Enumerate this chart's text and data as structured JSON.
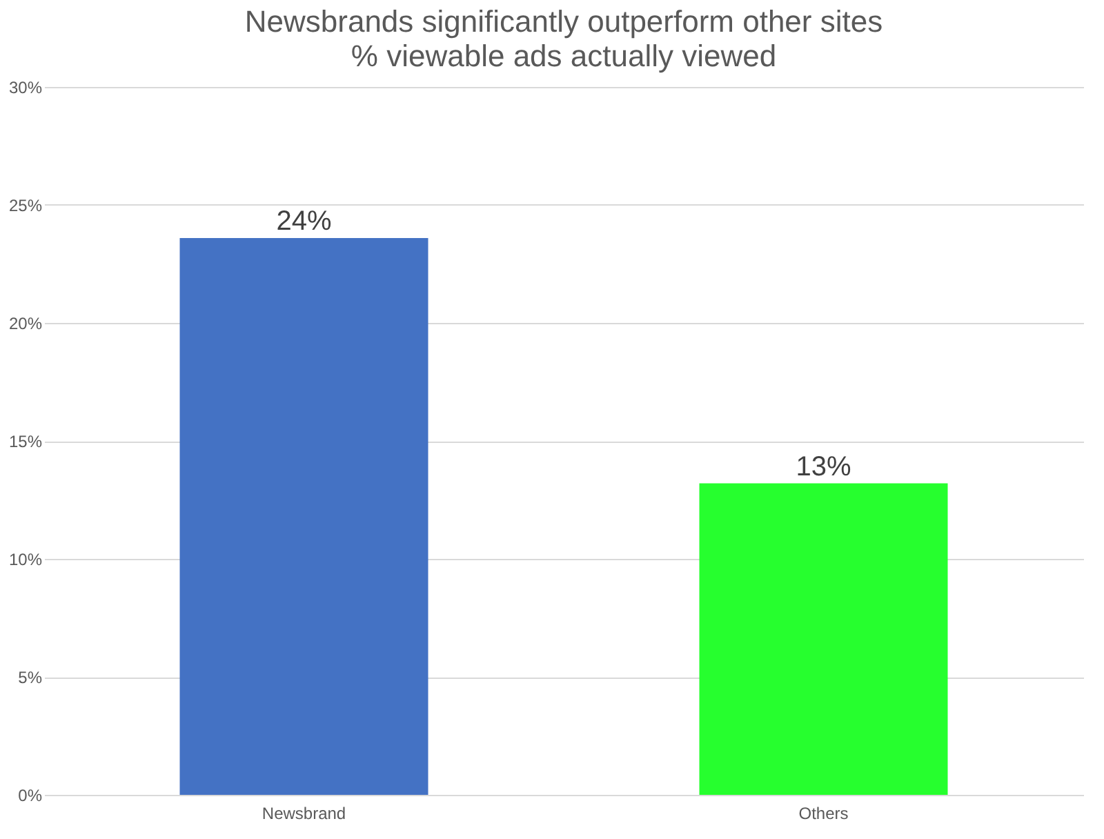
{
  "chart_data": {
    "type": "bar",
    "title": "Newsbrands significantly outperform other sites",
    "subtitle": "% viewable ads actually viewed",
    "categories": [
      "Newsbrand",
      "Others"
    ],
    "values": [
      23.6,
      13.2
    ],
    "colors": [
      "#4472c4",
      "#26ff2e"
    ],
    "value_labels": [
      "24%",
      "13%"
    ],
    "ylim": [
      0,
      30
    ],
    "yticks": [
      {
        "value": 0,
        "label": "0%"
      },
      {
        "value": 5,
        "label": "5%"
      },
      {
        "value": 10,
        "label": "10%"
      },
      {
        "value": 15,
        "label": "15%"
      },
      {
        "value": 20,
        "label": "20%"
      },
      {
        "value": 25,
        "label": "25%"
      },
      {
        "value": 30,
        "label": "30%"
      }
    ],
    "grid": "y"
  }
}
